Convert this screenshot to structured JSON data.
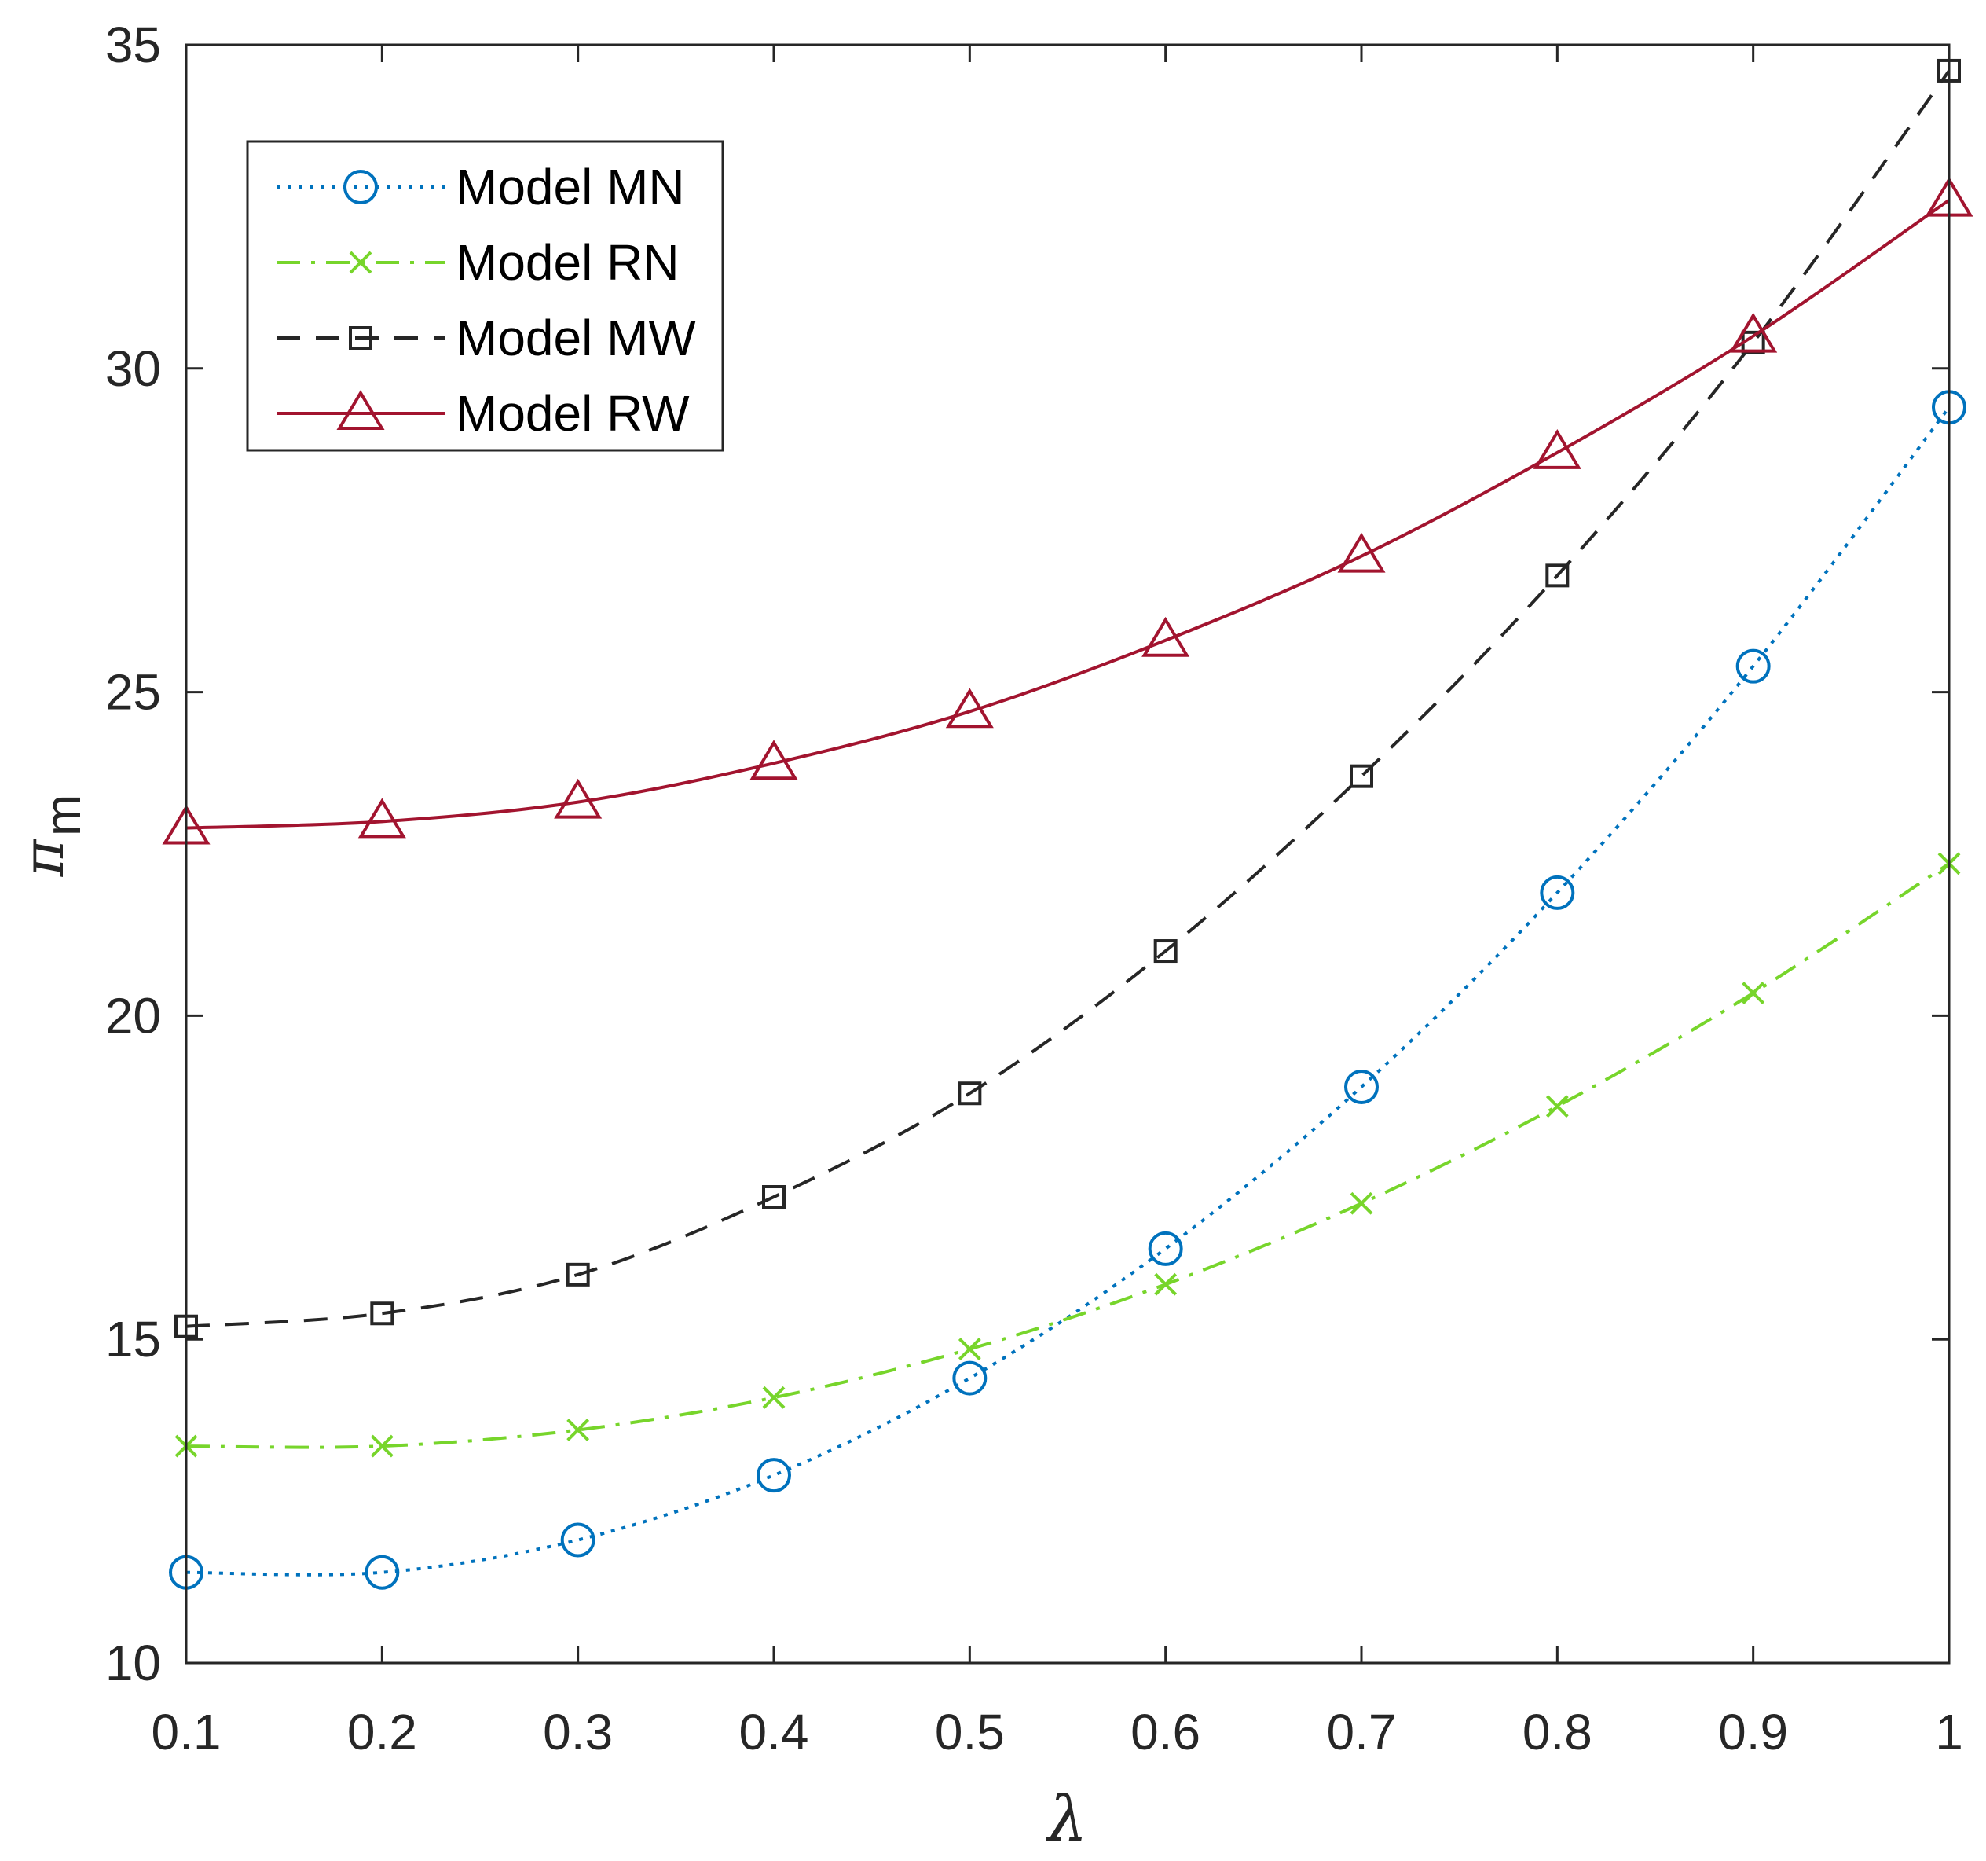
{
  "chart_data": {
    "type": "line",
    "title": "",
    "xlabel": "λ",
    "ylabel": "π",
    "ylabel_subscript": "m",
    "xlim": [
      0.1,
      1
    ],
    "ylim": [
      10,
      35
    ],
    "grid": false,
    "legend_position": "top-left",
    "x": [
      0.1,
      0.2,
      0.3,
      0.4,
      0.5,
      0.6,
      0.7,
      0.8,
      0.9,
      1.0
    ],
    "xtick_labels": [
      "0.1",
      "0.2",
      "0.3",
      "0.4",
      "0.5",
      "0.6",
      "0.7",
      "0.8",
      "0.9",
      "1"
    ],
    "ytick_values": [
      10,
      15,
      20,
      25,
      30,
      35
    ],
    "ytick_labels": [
      "10",
      "15",
      "20",
      "25",
      "30",
      "35"
    ],
    "series": [
      {
        "name": "Model MN",
        "color": "#0072BD",
        "line": "dotted",
        "marker": "circle",
        "values": [
          11.4,
          11.4,
          11.9,
          12.9,
          14.4,
          16.4,
          18.9,
          21.9,
          25.4,
          29.4
        ]
      },
      {
        "name": "Model RN",
        "color": "#77D52B",
        "line": "dashdot",
        "marker": "x",
        "values": [
          13.35,
          13.35,
          13.6,
          14.1,
          14.85,
          15.85,
          17.1,
          18.6,
          20.35,
          22.35
        ]
      },
      {
        "name": "Model MW",
        "color": "#262626",
        "line": "dashed",
        "marker": "square",
        "values": [
          15.2,
          15.4,
          16.0,
          17.2,
          18.8,
          21.0,
          23.7,
          26.8,
          30.4,
          34.6
        ]
      },
      {
        "name": "Model RW",
        "color": "#A2142F",
        "line": "solid",
        "marker": "triangle",
        "values": [
          22.9,
          23.0,
          23.3,
          23.9,
          24.7,
          25.8,
          27.1,
          28.7,
          30.5,
          32.6
        ]
      }
    ]
  }
}
